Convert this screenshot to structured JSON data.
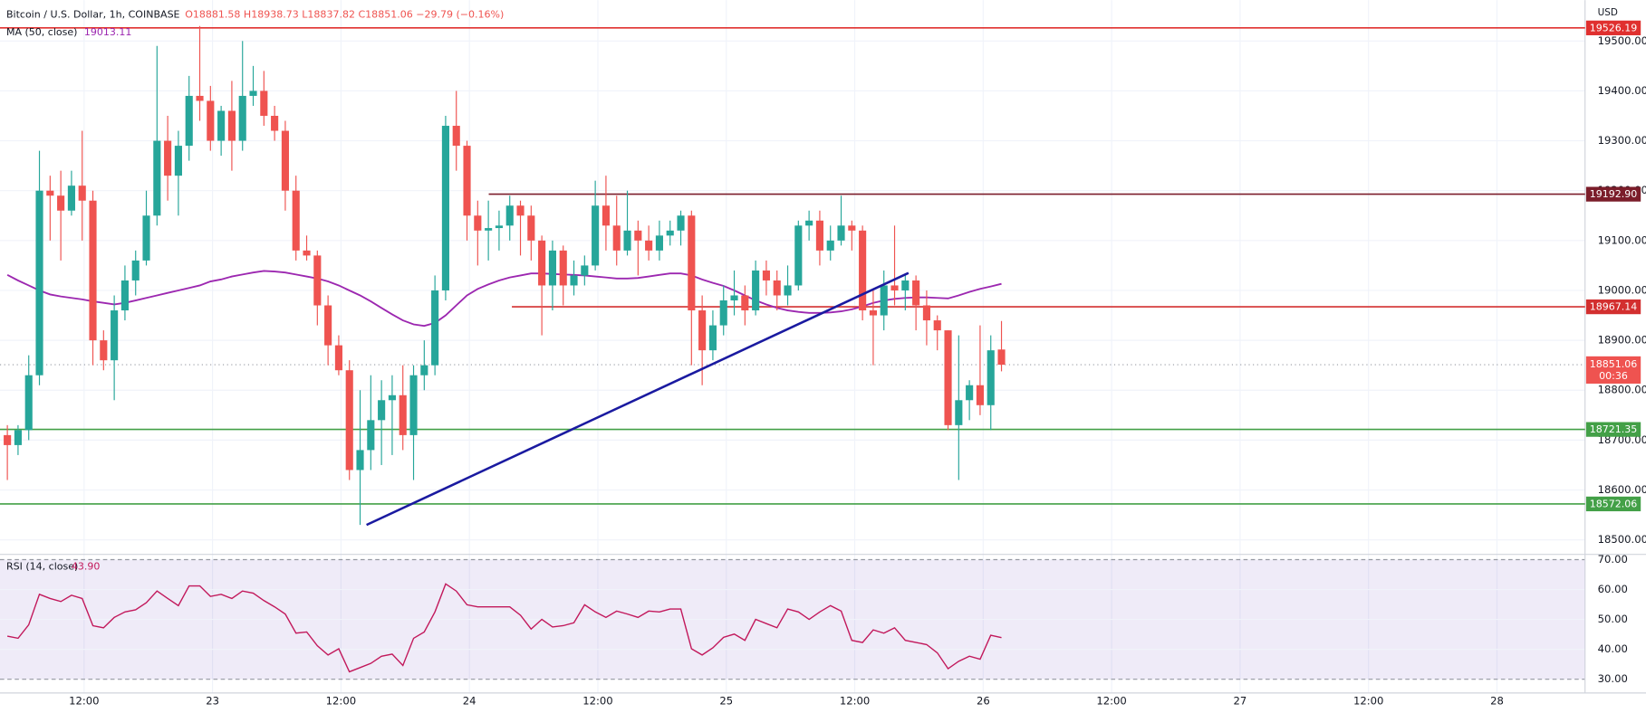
{
  "header": {
    "symbol": "Bitcoin / U.S. Dollar, 1h, COINBASE",
    "ohlc": "O18881.58 H18938.73 L18837.82 C18851.06 −29.79 (−0.16%)"
  },
  "chart_data": [
    {
      "type": "candlestick",
      "currency": "USD",
      "xticks": [
        "12:00",
        "23",
        "12:00",
        "24",
        "12:00",
        "25",
        "12:00",
        "26",
        "12:00",
        "27",
        "12:00",
        "28"
      ],
      "up_color": "#26a69a",
      "down_color": "#ef5350",
      "open": [
        18710,
        18690,
        18720,
        18830,
        19200,
        19190,
        19160,
        19210,
        19180,
        18900,
        18860,
        18960,
        19020,
        19060,
        19150,
        19300,
        19230,
        19290,
        19390,
        19380,
        19300,
        19360,
        19300,
        19390,
        19400,
        19350,
        19320,
        19200,
        19080,
        19070,
        18970,
        18890,
        18840,
        18640,
        18680,
        18740,
        18780,
        18790,
        18710,
        18830,
        18850,
        19000,
        19330,
        19290,
        19150,
        19120,
        19125,
        19130,
        19170,
        19150,
        19100,
        19010,
        19080,
        19010,
        19030,
        19050,
        19170,
        19130,
        19080,
        19120,
        19100,
        19080,
        19110,
        19120,
        19150,
        18960,
        18880,
        18930,
        18980,
        18990,
        18960,
        19040,
        19020,
        18990,
        19010,
        19130,
        19140,
        19080,
        19100,
        19130,
        19120,
        18960,
        18950,
        19010,
        19000,
        19020,
        18970,
        18940,
        18920,
        18730,
        18780,
        18810,
        18770,
        18881.58
      ],
      "high": [
        18730,
        18730,
        18870,
        19280,
        19230,
        19240,
        19240,
        19320,
        19200,
        18920,
        18990,
        19050,
        19080,
        19200,
        19490,
        19350,
        19320,
        19430,
        19530,
        19410,
        19370,
        19420,
        19500,
        19450,
        19440,
        19370,
        19340,
        19230,
        19110,
        19080,
        18990,
        18910,
        18860,
        18800,
        18830,
        18820,
        18830,
        18850,
        18850,
        18900,
        19030,
        19350,
        19400,
        19300,
        19180,
        19180,
        19160,
        19190,
        19180,
        19170,
        19110,
        19100,
        19090,
        19060,
        19070,
        19220,
        19230,
        19190,
        19200,
        19140,
        19130,
        19140,
        19140,
        19160,
        19160,
        18990,
        18960,
        19010,
        19040,
        19010,
        19060,
        19060,
        19040,
        19050,
        19140,
        19160,
        19160,
        19130,
        19190,
        19140,
        19130,
        19000,
        19040,
        19130,
        19030,
        19030,
        19000,
        18950,
        18920,
        18910,
        18820,
        18930,
        18910,
        18938.73
      ],
      "low": [
        18620,
        18670,
        18700,
        18810,
        19100,
        19060,
        19150,
        19100,
        18850,
        18840,
        18780,
        18940,
        18990,
        19050,
        19130,
        19180,
        19150,
        19260,
        19340,
        19280,
        19270,
        19240,
        19280,
        19370,
        19330,
        19300,
        19160,
        19060,
        19060,
        18930,
        18850,
        18830,
        18620,
        18530,
        18640,
        18650,
        18670,
        18680,
        18620,
        18800,
        18830,
        18980,
        19240,
        19100,
        19050,
        19060,
        19080,
        19100,
        19070,
        19060,
        18910,
        18960,
        18970,
        18990,
        19010,
        19040,
        19080,
        19050,
        19070,
        19030,
        19060,
        19060,
        19090,
        19090,
        18850,
        18810,
        18860,
        18910,
        18950,
        18930,
        18950,
        18990,
        18960,
        18970,
        19000,
        19100,
        19050,
        19060,
        19090,
        19080,
        18940,
        18850,
        18920,
        18970,
        18960,
        18920,
        18890,
        18880,
        18720,
        18620,
        18740,
        18750,
        18720,
        18837.82
      ],
      "close": [
        18690,
        18720,
        18830,
        19200,
        19190,
        19160,
        19210,
        19180,
        18900,
        18860,
        18960,
        19020,
        19060,
        19150,
        19300,
        19230,
        19290,
        19390,
        19380,
        19300,
        19360,
        19300,
        19390,
        19400,
        19350,
        19320,
        19200,
        19080,
        19070,
        18970,
        18890,
        18840,
        18640,
        18680,
        18740,
        18780,
        18790,
        18710,
        18830,
        18850,
        19000,
        19330,
        19290,
        19150,
        19120,
        19125,
        19130,
        19170,
        19150,
        19100,
        19010,
        19080,
        19010,
        19030,
        19050,
        19170,
        19130,
        19080,
        19120,
        19100,
        19080,
        19110,
        19120,
        19150,
        18960,
        18880,
        18930,
        18980,
        18990,
        18960,
        19040,
        19020,
        18990,
        19010,
        19130,
        19140,
        19080,
        19100,
        19130,
        19120,
        18960,
        18950,
        19010,
        19000,
        19020,
        18970,
        18940,
        18920,
        18730,
        18780,
        18810,
        18770,
        18880,
        18851.06
      ],
      "ma": {
        "name": "MA (50, close)",
        "color": "#9c27b0",
        "values": [
          19031,
          19020,
          19010,
          19000,
          18992,
          18988,
          18985,
          18982,
          18978,
          18975,
          18972,
          18975,
          18980,
          18985,
          18990,
          18995,
          19000,
          19005,
          19010,
          19018,
          19022,
          19028,
          19032,
          19036,
          19039,
          19038,
          19036,
          19032,
          19028,
          19024,
          19018,
          19010,
          19000,
          18990,
          18978,
          18965,
          18952,
          18940,
          18932,
          18929,
          18935,
          18950,
          18970,
          18990,
          19003,
          19012,
          19020,
          19026,
          19030,
          19034,
          19034,
          19033,
          19032,
          19031,
          19030,
          19028,
          19026,
          19024,
          19024,
          19025,
          19028,
          19031,
          19034,
          19034,
          19030,
          19022,
          19015,
          19009,
          19000,
          18990,
          18980,
          18972,
          18965,
          18960,
          18957,
          18955,
          18955,
          18956,
          18958,
          18962,
          18968,
          18975,
          18980,
          18983,
          18985,
          18986,
          18986,
          18985,
          18984,
          18990,
          18997,
          19003,
          19008,
          19013.11
        ]
      },
      "levels": [
        {
          "value": 19526.19,
          "label": "19526.19",
          "color": "#e0302f"
        },
        {
          "value": 19192.9,
          "label": "19192.90",
          "color": "#7b1d2a"
        },
        {
          "value": 18967.14,
          "label": "18967.14",
          "color": "#d32f2f"
        },
        {
          "value": 18721.35,
          "label": "18721.35",
          "color": "#43a047"
        },
        {
          "value": 18572.06,
          "label": "18572.06",
          "color": "#43a047"
        }
      ],
      "trendline": {
        "color": "#1a1aa0",
        "values": [
          18530,
          19035
        ]
      },
      "countdown": "00:36",
      "ylim": [
        18473,
        19582
      ],
      "yticks": [
        {
          "value": 18500,
          "label": "18500.00"
        },
        {
          "value": 18600,
          "label": "18600.00"
        },
        {
          "value": 18700,
          "label": "18700.00"
        },
        {
          "value": 18800,
          "label": "18800.00"
        },
        {
          "value": 18900,
          "label": "18900.00"
        },
        {
          "value": 19000,
          "label": "19000.00"
        },
        {
          "value": 19100,
          "label": "19100.00"
        },
        {
          "value": 19200,
          "label": "19200.00"
        },
        {
          "value": 19300,
          "label": "19300.00"
        },
        {
          "value": 19400,
          "label": "19400.00"
        },
        {
          "value": 19500,
          "label": "19500.00"
        }
      ],
      "grid": true
    },
    {
      "type": "line",
      "series": [
        {
          "name": "RSI (14, close)",
          "color": "#c2185b",
          "last_value_label": "43.90",
          "values": [
            44.4,
            43.7,
            48.2,
            58.4,
            57.0,
            56.0,
            58.1,
            57.0,
            47.9,
            47.2,
            50.7,
            52.5,
            53.2,
            55.6,
            59.5,
            57.0,
            54.6,
            61.2,
            61.2,
            57.7,
            58.4,
            57.0,
            59.5,
            58.8,
            56.3,
            54.2,
            51.8,
            45.4,
            45.8,
            41.2,
            38.1,
            40.2,
            32.5,
            33.9,
            35.3,
            37.7,
            38.4,
            34.6,
            43.7,
            45.8,
            52.5,
            61.9,
            59.5,
            54.9,
            54.2,
            54.2,
            54.2,
            54.2,
            51.4,
            46.8,
            50.0,
            47.5,
            47.9,
            48.9,
            54.9,
            52.5,
            50.7,
            52.8,
            51.8,
            50.7,
            52.8,
            52.5,
            53.5,
            53.5,
            40.2,
            38.1,
            40.5,
            44.0,
            45.1,
            43.0,
            50.0,
            48.6,
            47.2,
            53.5,
            52.5,
            50.0,
            52.5,
            54.6,
            52.8,
            43.0,
            42.3,
            46.5,
            45.4,
            47.2,
            43.0,
            42.3,
            41.6,
            38.8,
            33.5,
            36.0,
            37.7,
            36.7,
            44.7,
            43.9
          ]
        }
      ],
      "band": [
        30,
        70
      ],
      "band_color": "#7e57c2",
      "ylim": [
        25.4,
        71.4
      ],
      "yticks": [
        {
          "value": 30,
          "label": "30.00"
        },
        {
          "value": 40,
          "label": "40.00"
        },
        {
          "value": 50,
          "label": "50.00"
        },
        {
          "value": 60,
          "label": "60.00"
        },
        {
          "value": 70,
          "label": "70.00"
        }
      ],
      "grid": true
    }
  ]
}
